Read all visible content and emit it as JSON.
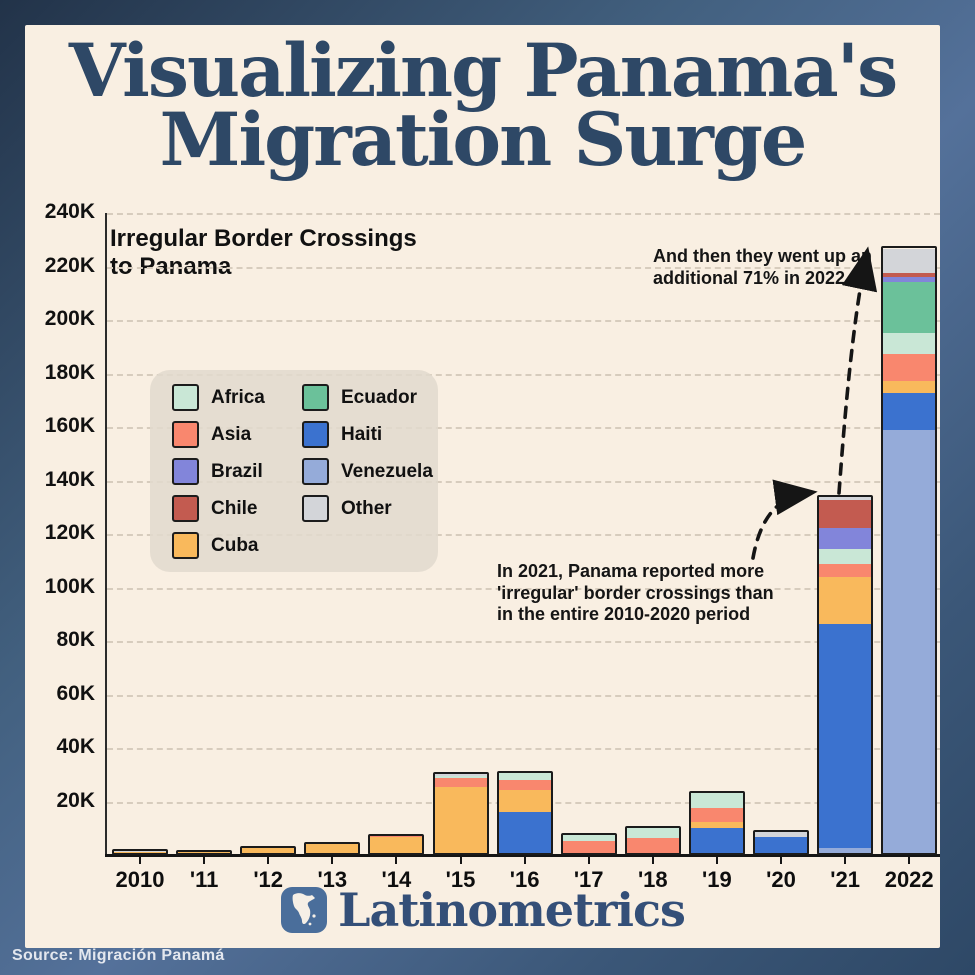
{
  "page": {
    "title_line1": "Visualizing Panama's",
    "title_line2": "Migration Surge",
    "brand": "Latinometrics",
    "source_label": "Source: Migración Panamá"
  },
  "colors": {
    "card_background": "#f9efe2",
    "title": "#2e4866",
    "outer_background": "#3b5778",
    "legend_box": "#e2d9ce",
    "grid": "#d7ccbd",
    "axis": "#151515"
  },
  "chart_data": {
    "type": "bar",
    "stacked": true,
    "title": "Visualizing Panama's Migration Surge",
    "subtitle_line1": "Irregular Border Crossings",
    "subtitle_line2": "to Panama",
    "xlabel": "",
    "ylabel": "Irregular border crossings to Panama",
    "ylim": [
      0,
      240000
    ],
    "grid": "horizontal-dashed",
    "legend_position": "upper-left-box",
    "categories": [
      "2010",
      "'11",
      "'12",
      "'13",
      "'14",
      "'15",
      "'16",
      "'17",
      "'18",
      "'19",
      "'20",
      "'21",
      "2022"
    ],
    "yticks": [
      {
        "label": "20K",
        "value": 20000
      },
      {
        "label": "40K",
        "value": 40000
      },
      {
        "label": "60K",
        "value": 60000
      },
      {
        "label": "80K",
        "value": 80000
      },
      {
        "label": "100K",
        "value": 100000
      },
      {
        "label": "120K",
        "value": 120000
      },
      {
        "label": "140K",
        "value": 140000
      },
      {
        "label": "160K",
        "value": 160000
      },
      {
        "label": "180K",
        "value": 180000
      },
      {
        "label": "200K",
        "value": 200000
      },
      {
        "label": "220K",
        "value": 220000
      },
      {
        "label": "240K",
        "value": 240000
      }
    ],
    "series": [
      {
        "name": "Venezuela",
        "color": "#95abd9",
        "values": [
          0,
          0,
          0,
          0,
          0,
          0,
          0,
          0,
          0,
          0,
          0,
          2000,
          158000
        ]
      },
      {
        "name": "Haiti",
        "color": "#3b72cf",
        "values": [
          0,
          0,
          0,
          0,
          0,
          0,
          15400,
          0,
          0,
          9500,
          6000,
          83500,
          14000
        ]
      },
      {
        "name": "Cuba",
        "color": "#f9b95c",
        "values": [
          300,
          200,
          2000,
          3200,
          6000,
          24700,
          8200,
          0,
          0,
          2000,
          0,
          17500,
          4500
        ]
      },
      {
        "name": "Asia",
        "color": "#f9876e",
        "values": [
          0,
          0,
          0,
          0,
          500,
          3400,
          3700,
          4500,
          5500,
          5500,
          0,
          5000,
          10000
        ]
      },
      {
        "name": "Africa",
        "color": "#c9e7d6",
        "values": [
          0,
          0,
          0,
          0,
          0,
          800,
          2600,
          2200,
          4000,
          5500,
          0,
          5500,
          8000
        ]
      },
      {
        "name": "Ecuador",
        "color": "#6bc19a",
        "values": [
          0,
          0,
          0,
          0,
          0,
          0,
          0,
          0,
          0,
          0,
          0,
          0,
          19000
        ]
      },
      {
        "name": "Brazil",
        "color": "#8285da",
        "values": [
          0,
          0,
          0,
          0,
          0,
          0,
          0,
          0,
          0,
          0,
          0,
          8000,
          2000
        ]
      },
      {
        "name": "Chile",
        "color": "#c35b50",
        "values": [
          0,
          0,
          0,
          0,
          0,
          0,
          0,
          0,
          0,
          0,
          0,
          10500,
          1500
        ]
      },
      {
        "name": "Other",
        "color": "#d3d5d9",
        "values": [
          300,
          100,
          0,
          0,
          0,
          700,
          0,
          0,
          0,
          0,
          2000,
          1000,
          9000
        ]
      }
    ],
    "legend": {
      "column1": [
        "Africa",
        "Asia",
        "Brazil",
        "Chile",
        "Cuba"
      ],
      "column2": [
        "Ecuador",
        "Haiti",
        "Venezuela",
        "Other"
      ]
    },
    "annotations": [
      {
        "line1": "And then they went up an",
        "line2": "additional 71% in 2022"
      },
      {
        "line1": "In 2021, Panama reported more",
        "line2": "'irregular' border crossings than",
        "line3": "in the entire 2010-2020 period"
      }
    ]
  }
}
